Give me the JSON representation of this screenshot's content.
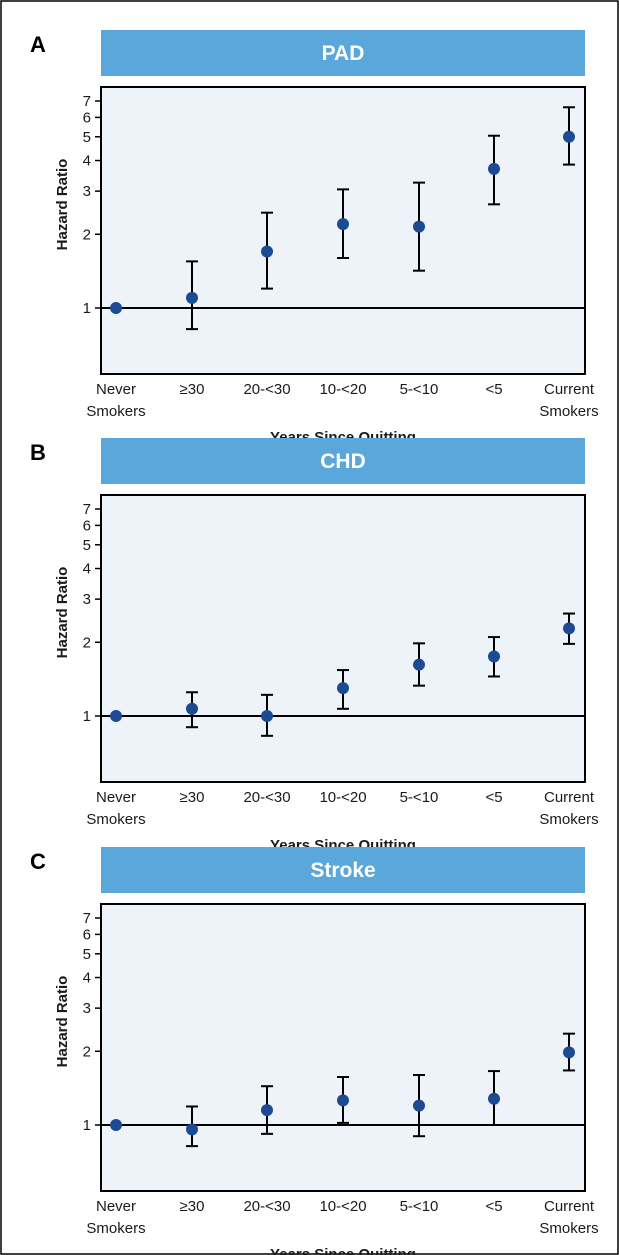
{
  "colors": {
    "banner": "#5aa7dc",
    "plot_bg": "#eef3f9",
    "marker": "#1c4a93",
    "line": "#000000"
  },
  "chart_data": [
    {
      "type": "scatter",
      "panel_letter": "A",
      "title": "PAD",
      "xlabel": "Years Since Quitting",
      "ylabel": "Hazard Ratio",
      "y_scale": "log",
      "ylim": [
        0.8,
        8
      ],
      "yticks": [
        1,
        2,
        3,
        4,
        5,
        6,
        7
      ],
      "reference_line": 1,
      "categories": [
        "Never\nSmokers",
        "≥30",
        "20-<30",
        "10-<20",
        "5-<10",
        "<5",
        "Current\nSmokers"
      ],
      "values": [
        1.0,
        1.1,
        1.7,
        2.2,
        2.15,
        3.7,
        5.0
      ],
      "ci_lower": [
        1.0,
        0.82,
        1.2,
        1.6,
        1.42,
        2.65,
        3.85
      ],
      "ci_upper": [
        1.0,
        1.55,
        2.45,
        3.05,
        3.25,
        5.05,
        6.6
      ]
    },
    {
      "type": "scatter",
      "panel_letter": "B",
      "title": "CHD",
      "xlabel": "Years Since Quitting",
      "ylabel": "Hazard Ratio",
      "y_scale": "log",
      "ylim": [
        0.8,
        8
      ],
      "yticks": [
        1,
        2,
        3,
        4,
        5,
        6,
        7
      ],
      "reference_line": 1,
      "categories": [
        "Never\nSmokers",
        "≥30",
        "20-<30",
        "10-<20",
        "5-<10",
        "<5",
        "Current\nSmokers"
      ],
      "values": [
        1.0,
        1.07,
        1.0,
        1.3,
        1.62,
        1.75,
        2.28
      ],
      "ci_lower": [
        1.0,
        0.9,
        0.83,
        1.07,
        1.33,
        1.45,
        1.97
      ],
      "ci_upper": [
        1.0,
        1.25,
        1.22,
        1.54,
        1.98,
        2.1,
        2.62
      ]
    },
    {
      "type": "scatter",
      "panel_letter": "C",
      "title": "Stroke",
      "xlabel": "Years Since Quitting",
      "ylabel": "Hazard Ratio",
      "y_scale": "log",
      "ylim": [
        0.8,
        8
      ],
      "yticks": [
        1,
        2,
        3,
        4,
        5,
        6,
        7
      ],
      "reference_line": 1,
      "categories": [
        "Never\nSmokers",
        "≥30",
        "20-<30",
        "10-<20",
        "5-<10",
        "<5",
        "Current\nSmokers"
      ],
      "values": [
        1.0,
        0.96,
        1.15,
        1.26,
        1.2,
        1.28,
        1.98
      ],
      "ci_lower": [
        1.0,
        0.82,
        0.92,
        1.02,
        0.9,
        1.0,
        1.67
      ],
      "ci_upper": [
        1.0,
        1.19,
        1.44,
        1.57,
        1.6,
        1.66,
        2.36
      ]
    }
  ]
}
